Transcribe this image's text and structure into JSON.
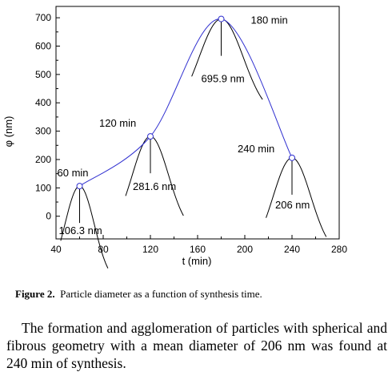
{
  "chart_data": {
    "type": "line",
    "xlabel": "t (min)",
    "ylabel": "φ (nm)",
    "xlim": [
      40,
      280
    ],
    "ylim": [
      -80,
      740
    ],
    "xticks": [
      40,
      80,
      120,
      160,
      200,
      240,
      280
    ],
    "yticks": [
      0,
      100,
      200,
      300,
      400,
      500,
      600,
      700
    ],
    "grid": false,
    "series": [
      {
        "color": "#3030d0",
        "x": [
          60,
          120,
          180,
          240
        ],
        "y": [
          106.3,
          281.6,
          695.9,
          206
        ]
      }
    ],
    "peak_curves": [
      {
        "center": 60,
        "peak": 106.3,
        "from": 44,
        "to": 84
      },
      {
        "center": 120,
        "peak": 281.6,
        "from": 99,
        "to": 148
      },
      {
        "center": 180,
        "peak": 695.9,
        "from": 155,
        "to": 215
      },
      {
        "center": 240,
        "peak": 206,
        "from": 218,
        "to": 269
      }
    ],
    "annotations": [
      {
        "text": "60 min",
        "x": 60,
        "y": 106.3
      },
      {
        "text": "106.3 nm",
        "x": 60,
        "y": 106.3
      },
      {
        "text": "120 min",
        "x": 120,
        "y": 281.6
      },
      {
        "text": "281.6 nm",
        "x": 120,
        "y": 281.6
      },
      {
        "text": "180 min",
        "x": 180,
        "y": 695.9
      },
      {
        "text": "695.9 nm",
        "x": 180,
        "y": 695.9
      },
      {
        "text": "240 min",
        "x": 240,
        "y": 206
      },
      {
        "text": "206 nm",
        "x": 240,
        "y": 206
      }
    ]
  },
  "caption": {
    "label": "Figure 2.",
    "text": "Particle diameter as a function of synthesis time."
  },
  "paragraph": "The formation and agglomeration of particles with spherical and fibrous geometry with a mean diameter of 206 nm was found at 240 min of synthesis."
}
